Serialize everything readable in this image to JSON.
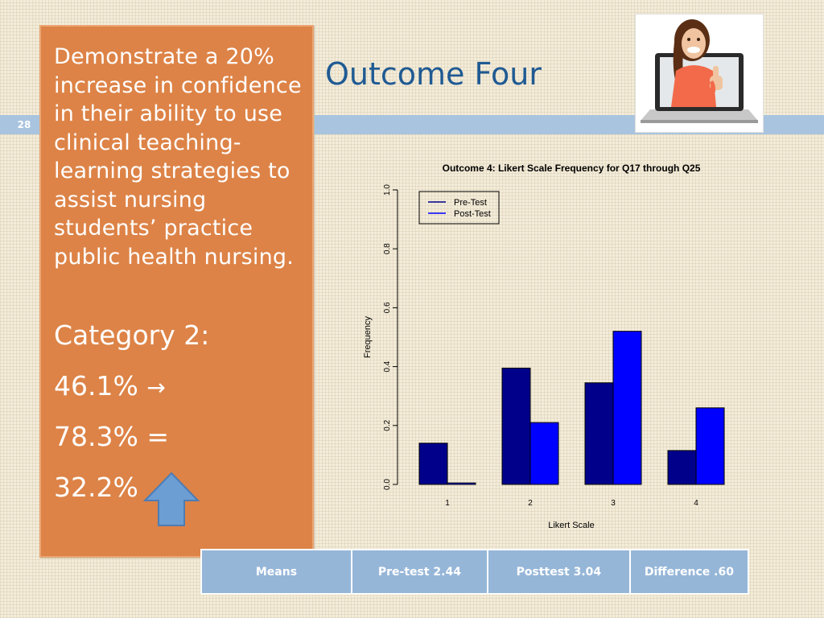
{
  "slide": {
    "number": "28",
    "title": "Outcome Four",
    "objective_text": "Demonstrate a 20% increase in confidence in their ability to use clinical teaching-learning strategies to assist nursing students’ practice public health nursing.",
    "category_label": "Category 2:",
    "pre_value": "46.1%",
    "pre_arrow": "→",
    "post_value": "78.3% =",
    "difference_value": "32.2%",
    "photo_icon": "woman-laptop-thumbs-up-photo",
    "arrow_icon": "up-arrow-icon"
  },
  "colors": {
    "panel": "#dd8347",
    "title": "#1f5a93",
    "stripe": "#a9c4df",
    "table_cell": "#96b6d8",
    "pre_test": "#00008b",
    "post_test": "#0000ff",
    "arrow": "#6d9ed3"
  },
  "means_table": {
    "cells": [
      "Means",
      "Pre-test 2.44",
      "Posttest  3.04",
      "Difference .60"
    ]
  },
  "chart_data": {
    "type": "bar",
    "title": "Outcome 4: Likert Scale Frequency for Q17 through Q25",
    "xlabel": "Likert Scale",
    "ylabel": "Frequency",
    "categories": [
      "1",
      "2",
      "3",
      "4"
    ],
    "series": [
      {
        "name": "Pre-Test",
        "values": [
          0.14,
          0.395,
          0.345,
          0.115
        ]
      },
      {
        "name": "Post-Test",
        "values": [
          0.005,
          0.21,
          0.52,
          0.26
        ]
      }
    ],
    "ylim": [
      0,
      1.0
    ],
    "yticks": [
      "0.0",
      "0.2",
      "0.4",
      "0.6",
      "0.8",
      "1.0"
    ],
    "legend_position": "top-left",
    "grid": false
  }
}
